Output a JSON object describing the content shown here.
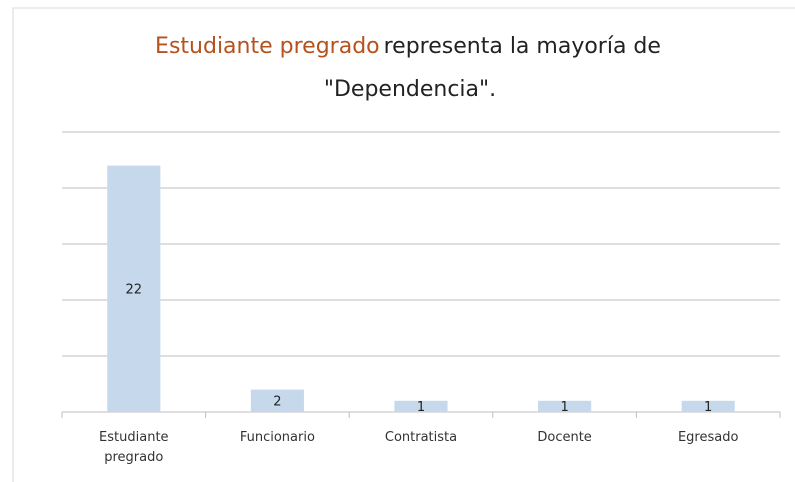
{
  "chart_data": {
    "type": "bar",
    "title_parts": [
      "Estudiante pregrado",
      "representa la mayoría de",
      "\"Dependencia\"."
    ],
    "categories": [
      "Estudiante pregrado",
      "Funcionario",
      "Contratista",
      "Docente",
      "Egresado"
    ],
    "values": [
      22,
      2,
      1,
      1,
      1
    ],
    "color": "#c6d9ec",
    "ylim": [
      0,
      25
    ],
    "yticks": [
      0,
      5,
      10,
      15,
      20,
      25
    ],
    "grid": true
  }
}
